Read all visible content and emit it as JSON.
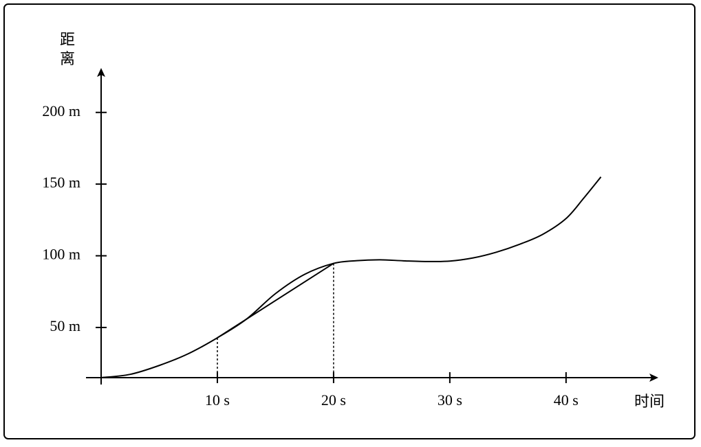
{
  "chart_data": {
    "type": "line",
    "x_label": "时间",
    "y_label": [
      "距",
      "离"
    ],
    "xlim": [
      0,
      48
    ],
    "ylim": [
      15,
      231
    ],
    "xticks": [
      {
        "value": 10,
        "label": "10 s"
      },
      {
        "value": 20,
        "label": "20 s"
      },
      {
        "value": 30,
        "label": "30 s"
      },
      {
        "value": 40,
        "label": "40 s"
      }
    ],
    "yticks": [
      {
        "value": 50,
        "label": "50 m"
      },
      {
        "value": 100,
        "label": "100 m"
      },
      {
        "value": 150,
        "label": "150 m"
      },
      {
        "value": 200,
        "label": "200 m"
      }
    ],
    "x": [
      0,
      2.5,
      5,
      7.5,
      10,
      12.5,
      15,
      17.5,
      20,
      22,
      24,
      26,
      28,
      30,
      32,
      34,
      36,
      38,
      40,
      41.5,
      43
    ],
    "series": [
      {
        "color": "#000000",
        "values": [
          15,
          17.3,
          23.5,
          31.7,
          42.8,
          55.8,
          73.6,
          87,
          94.7,
          96.6,
          97.2,
          96.5,
          96,
          96.3,
          98.5,
          102.5,
          108,
          115,
          126,
          140,
          155
        ]
      }
    ],
    "secant": {
      "x": [
        10,
        20
      ],
      "y": [
        42.8,
        94.7
      ]
    }
  }
}
